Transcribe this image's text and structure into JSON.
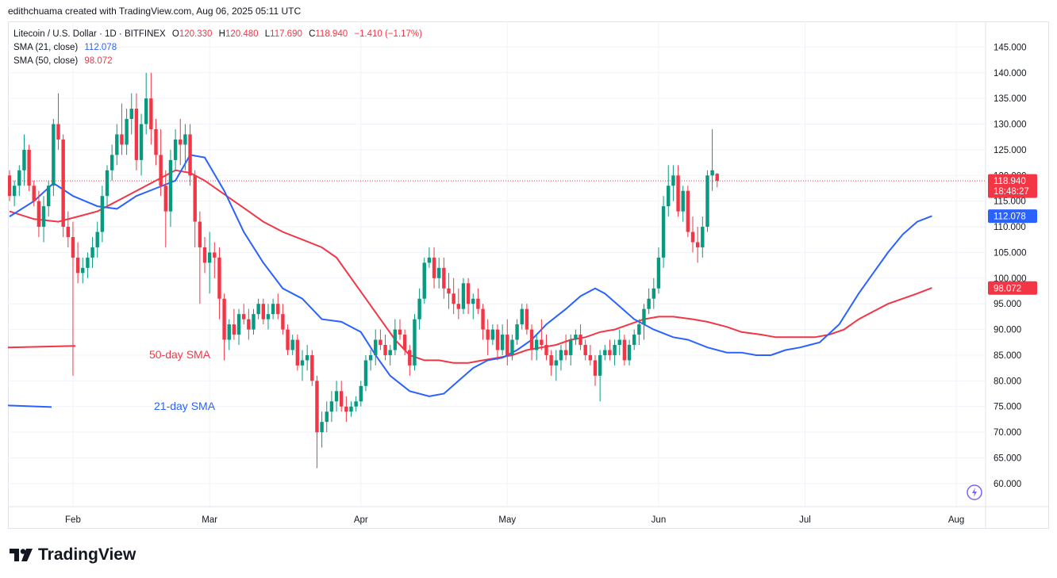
{
  "header": {
    "attribution": "edithchuama created with TradingView.com, Aug 06, 2025 05:11 UTC"
  },
  "legend": {
    "symbol": "Litecoin / U.S. Dollar · 1D · BITFINEX",
    "o_label": "O",
    "o_value": "120.330",
    "h_label": "H",
    "h_value": "120.480",
    "l_label": "L",
    "l_value": "117.690",
    "c_label": "C",
    "c_value": "118.940",
    "change": "−1.410 (−1.17%)",
    "sma21_label": "SMA (21, close)",
    "sma21_value": "112.078",
    "sma50_label": "SMA (50, close)",
    "sma50_value": "98.072"
  },
  "brand": {
    "name": "TradingView"
  },
  "colors": {
    "up": "#089981",
    "down": "#f23645",
    "sma21": "#2962ff",
    "sma50": "#f23645",
    "grid": "#f0f3fa",
    "text": "#131722"
  },
  "chart_data": {
    "type": "candlestick",
    "title": "Litecoin / U.S. Dollar · 1D · BITFINEX",
    "ylim": [
      55.5,
      150
    ],
    "y_ticks": [
      60,
      65,
      70,
      75,
      80,
      85,
      90,
      95,
      100,
      105,
      110,
      115,
      120,
      125,
      130,
      135,
      140,
      145
    ],
    "y_tick_labels": [
      "60.000",
      "65.000",
      "70.000",
      "75.000",
      "80.000",
      "85.000",
      "90.000",
      "95.000",
      "100.000",
      "105.000",
      "110.000",
      "115.000",
      "120.000",
      "125.000",
      "130.000",
      "135.000",
      "140.000",
      "145.000"
    ],
    "x_start": "2025-01-19",
    "x_ticks": [
      {
        "label": "Feb",
        "day": 13
      },
      {
        "label": "Mar",
        "day": 41
      },
      {
        "label": "Apr",
        "day": 72
      },
      {
        "label": "May",
        "day": 102
      },
      {
        "label": "Jun",
        "day": 133
      },
      {
        "label": "Jul",
        "day": 163
      },
      {
        "label": "Aug",
        "day": 194
      }
    ],
    "price_labels": [
      {
        "name": "last-price",
        "text": "118.940",
        "sub": "18:48:27",
        "value": 118.94,
        "color": "#f23645"
      },
      {
        "name": "sma21",
        "text": "112.078",
        "value": 112.078,
        "color": "#2962ff"
      },
      {
        "name": "sma50",
        "text": "98.072",
        "value": 98.072,
        "color": "#f23645"
      }
    ],
    "last_price": 118.94,
    "annotations": [
      {
        "text": "50-day SMA",
        "color": "#f23645"
      },
      {
        "text": "21-day SMA",
        "color": "#2962ff"
      }
    ],
    "candles": [
      [
        0,
        120,
        121,
        115,
        116
      ],
      [
        1,
        116,
        119,
        114,
        118
      ],
      [
        2,
        118,
        122,
        116,
        121
      ],
      [
        3,
        121,
        128,
        118,
        125
      ],
      [
        4,
        125,
        126,
        117,
        118
      ],
      [
        5,
        118,
        119,
        114,
        115
      ],
      [
        6,
        115,
        117,
        108,
        110
      ],
      [
        7,
        110,
        116,
        107,
        114
      ],
      [
        8,
        114,
        119,
        112,
        118
      ],
      [
        9,
        118,
        131,
        116,
        130
      ],
      [
        10,
        130,
        136,
        125,
        127
      ],
      [
        11,
        127,
        128,
        108,
        110
      ],
      [
        12,
        110,
        113,
        106,
        108
      ],
      [
        13,
        108,
        111,
        81,
        104
      ],
      [
        14,
        104,
        107,
        99,
        101
      ],
      [
        15,
        101,
        104,
        99,
        102
      ],
      [
        16,
        102,
        105,
        100,
        104
      ],
      [
        17,
        104,
        108,
        102,
        106
      ],
      [
        18,
        106,
        111,
        104,
        109
      ],
      [
        19,
        109,
        118,
        107,
        116
      ],
      [
        20,
        116,
        122,
        114,
        121
      ],
      [
        21,
        121,
        126,
        119,
        124
      ],
      [
        22,
        124,
        130,
        122,
        128
      ],
      [
        23,
        128,
        134,
        124,
        126
      ],
      [
        24,
        126,
        133,
        124,
        131
      ],
      [
        25,
        131,
        136,
        128,
        133
      ],
      [
        26,
        133,
        136,
        121,
        123
      ],
      [
        27,
        123,
        132,
        120,
        130
      ],
      [
        28,
        130,
        140,
        128,
        135
      ],
      [
        29,
        135,
        140,
        126,
        129
      ],
      [
        30,
        129,
        131,
        122,
        124
      ],
      [
        31,
        124,
        129,
        116,
        118
      ],
      [
        32,
        118,
        121,
        106,
        113
      ],
      [
        33,
        113,
        125,
        110,
        123
      ],
      [
        34,
        123,
        129,
        121,
        127
      ],
      [
        35,
        127,
        131,
        122,
        126
      ],
      [
        36,
        126,
        130,
        121,
        128
      ],
      [
        37,
        128,
        130,
        118,
        120
      ],
      [
        38,
        120,
        121,
        106,
        111
      ],
      [
        39,
        111,
        113,
        95,
        106
      ],
      [
        40,
        106,
        108,
        101,
        103
      ],
      [
        41,
        103,
        109,
        97,
        105
      ],
      [
        42,
        105,
        107,
        100,
        104
      ],
      [
        43,
        104,
        106,
        92,
        96
      ],
      [
        44,
        96,
        97,
        84,
        88
      ],
      [
        45,
        88,
        92,
        86,
        91
      ],
      [
        46,
        91,
        94,
        88,
        89
      ],
      [
        47,
        89,
        94,
        87,
        93
      ],
      [
        48,
        93,
        95,
        91,
        92
      ],
      [
        49,
        92,
        94,
        88,
        90
      ],
      [
        50,
        90,
        94,
        89,
        93
      ],
      [
        51,
        93,
        96,
        92,
        95
      ],
      [
        52,
        95,
        96,
        91,
        92
      ],
      [
        53,
        92,
        95,
        90,
        93
      ],
      [
        54,
        93,
        96,
        92,
        95
      ],
      [
        55,
        95,
        97,
        92,
        93
      ],
      [
        56,
        93,
        95,
        89,
        90
      ],
      [
        57,
        90,
        91,
        85,
        86
      ],
      [
        58,
        86,
        89,
        85,
        88
      ],
      [
        59,
        88,
        89,
        82,
        83
      ],
      [
        60,
        83,
        86,
        80,
        84
      ],
      [
        61,
        84,
        87,
        82,
        85
      ],
      [
        62,
        85,
        86,
        79,
        80
      ],
      [
        63,
        80,
        81,
        63,
        70
      ],
      [
        64,
        70,
        74,
        67,
        72
      ],
      [
        65,
        72,
        76,
        70,
        74
      ],
      [
        66,
        74,
        78,
        72,
        76
      ],
      [
        67,
        76,
        80,
        74,
        78
      ],
      [
        68,
        78,
        80,
        74,
        75
      ],
      [
        69,
        75,
        77,
        72,
        74
      ],
      [
        70,
        74,
        76,
        73,
        75
      ],
      [
        71,
        75,
        77,
        74,
        76
      ],
      [
        72,
        76,
        80,
        75,
        79
      ],
      [
        73,
        79,
        85,
        78,
        84
      ],
      [
        74,
        84,
        86,
        82,
        85
      ],
      [
        75,
        85,
        90,
        83,
        88
      ],
      [
        76,
        88,
        90,
        86,
        87
      ],
      [
        77,
        87,
        89,
        84,
        85
      ],
      [
        78,
        85,
        87,
        83,
        86
      ],
      [
        79,
        86,
        92,
        85,
        90
      ],
      [
        80,
        90,
        92,
        88,
        89
      ],
      [
        81,
        89,
        90,
        85,
        86
      ],
      [
        82,
        86,
        87,
        81,
        83
      ],
      [
        83,
        83,
        93,
        82,
        92
      ],
      [
        84,
        92,
        98,
        90,
        96
      ],
      [
        85,
        96,
        104,
        95,
        103
      ],
      [
        86,
        103,
        106,
        102,
        104
      ],
      [
        87,
        104,
        106,
        98,
        100
      ],
      [
        88,
        100,
        104,
        98,
        102
      ],
      [
        89,
        102,
        104,
        96,
        98
      ],
      [
        90,
        98,
        101,
        94,
        97
      ],
      [
        91,
        97,
        100,
        93,
        95
      ],
      [
        92,
        95,
        98,
        92,
        94
      ],
      [
        93,
        94,
        100,
        93,
        99
      ],
      [
        94,
        99,
        100,
        93,
        95
      ],
      [
        95,
        95,
        97,
        92,
        96
      ],
      [
        96,
        96,
        98,
        93,
        94
      ],
      [
        97,
        94,
        95,
        88,
        90
      ],
      [
        98,
        90,
        92,
        85,
        88
      ],
      [
        99,
        88,
        91,
        87,
        90
      ],
      [
        100,
        90,
        91,
        84,
        86
      ],
      [
        101,
        86,
        91,
        85,
        89
      ],
      [
        102,
        89,
        92,
        83,
        85
      ],
      [
        103,
        85,
        89,
        84,
        88
      ],
      [
        104,
        88,
        92,
        87,
        91
      ],
      [
        105,
        91,
        95,
        90,
        94
      ],
      [
        106,
        94,
        95,
        89,
        90
      ],
      [
        107,
        90,
        91,
        84,
        86
      ],
      [
        108,
        86,
        89,
        84,
        88
      ],
      [
        109,
        88,
        92,
        86,
        87
      ],
      [
        110,
        87,
        89,
        84,
        85
      ],
      [
        111,
        85,
        86,
        81,
        83
      ],
      [
        112,
        83,
        86,
        80,
        84
      ],
      [
        113,
        84,
        87,
        82,
        86
      ],
      [
        114,
        86,
        89,
        84,
        85
      ],
      [
        115,
        85,
        89,
        83,
        88
      ],
      [
        116,
        88,
        90,
        87,
        89
      ],
      [
        117,
        89,
        91,
        86,
        87
      ],
      [
        118,
        87,
        88,
        84,
        85
      ],
      [
        119,
        85,
        87,
        83,
        84
      ],
      [
        120,
        84,
        85,
        79,
        81
      ],
      [
        121,
        81,
        86,
        76,
        85
      ],
      [
        122,
        85,
        87,
        84,
        86
      ],
      [
        123,
        86,
        88,
        84,
        85
      ],
      [
        124,
        85,
        88,
        83,
        87
      ],
      [
        125,
        87,
        90,
        85,
        88
      ],
      [
        126,
        88,
        89,
        83,
        84
      ],
      [
        127,
        84,
        88,
        83,
        87
      ],
      [
        128,
        87,
        90,
        86,
        89
      ],
      [
        129,
        89,
        92,
        87,
        91
      ],
      [
        130,
        91,
        95,
        88,
        94
      ],
      [
        131,
        94,
        98,
        93,
        96
      ],
      [
        132,
        96,
        100,
        94,
        98
      ],
      [
        133,
        98,
        106,
        97,
        104
      ],
      [
        134,
        104,
        116,
        102,
        114
      ],
      [
        135,
        114,
        122,
        112,
        118
      ],
      [
        136,
        118,
        122,
        115,
        120
      ],
      [
        137,
        120,
        122,
        112,
        113
      ],
      [
        138,
        113,
        118,
        111,
        117
      ],
      [
        139,
        117,
        118,
        108,
        109
      ],
      [
        140,
        109,
        112,
        105,
        107
      ],
      [
        141,
        107,
        110,
        103,
        106
      ],
      [
        142,
        106,
        112,
        104,
        110
      ],
      [
        143,
        110,
        121,
        109,
        120
      ],
      [
        144,
        120,
        129,
        117,
        121
      ],
      [
        145,
        120.33,
        120.48,
        117.69,
        118.94
      ]
    ],
    "sma21": [
      [
        0,
        112
      ],
      [
        5,
        115
      ],
      [
        9,
        118.5
      ],
      [
        13,
        116
      ],
      [
        18,
        114
      ],
      [
        22,
        113.5
      ],
      [
        26,
        116
      ],
      [
        30,
        117.5
      ],
      [
        34,
        119
      ],
      [
        37,
        124
      ],
      [
        40,
        123.5
      ],
      [
        44,
        117
      ],
      [
        48,
        109
      ],
      [
        52,
        103
      ],
      [
        56,
        98
      ],
      [
        60,
        96
      ],
      [
        64,
        92
      ],
      [
        68,
        91.5
      ],
      [
        72,
        89.5
      ],
      [
        75,
        85
      ],
      [
        78,
        81
      ],
      [
        82,
        78
      ],
      [
        86,
        77
      ],
      [
        89,
        77.5
      ],
      [
        92,
        80
      ],
      [
        95,
        82.5
      ],
      [
        98,
        84
      ],
      [
        101,
        84.5
      ],
      [
        104,
        86
      ],
      [
        107,
        88
      ],
      [
        110,
        91
      ],
      [
        114,
        94
      ],
      [
        117,
        96.5
      ],
      [
        120,
        98
      ],
      [
        122,
        97
      ],
      [
        125,
        94.5
      ],
      [
        128,
        92
      ],
      [
        132,
        90
      ],
      [
        136,
        88.5
      ],
      [
        139,
        88
      ],
      [
        143,
        86.5
      ],
      [
        147,
        85.5
      ],
      [
        150,
        85.5
      ],
      [
        153,
        85
      ],
      [
        156,
        85
      ],
      [
        159,
        86
      ],
      [
        162,
        86.5
      ],
      [
        166,
        87.5
      ],
      [
        170,
        91
      ],
      [
        174,
        97
      ],
      [
        177,
        101
      ],
      [
        180,
        105
      ],
      [
        183,
        108.5
      ],
      [
        186,
        111
      ],
      [
        189,
        112.1
      ]
    ],
    "sma50": [
      [
        0,
        113
      ],
      [
        5,
        111.5
      ],
      [
        10,
        111
      ],
      [
        14,
        112
      ],
      [
        18,
        113
      ],
      [
        22,
        115
      ],
      [
        26,
        117
      ],
      [
        30,
        119
      ],
      [
        34,
        121
      ],
      [
        37,
        120.5
      ],
      [
        40,
        119
      ],
      [
        43,
        117
      ],
      [
        46,
        115
      ],
      [
        49,
        113
      ],
      [
        52,
        111
      ],
      [
        56,
        109
      ],
      [
        60,
        107.5
      ],
      [
        64,
        106
      ],
      [
        67,
        104
      ],
      [
        70,
        100
      ],
      [
        73,
        96
      ],
      [
        76,
        92
      ],
      [
        79,
        88
      ],
      [
        82,
        85
      ],
      [
        85,
        84
      ],
      [
        88,
        84
      ],
      [
        91,
        83.5
      ],
      [
        94,
        83.5
      ],
      [
        97,
        84
      ],
      [
        100,
        84.5
      ],
      [
        103,
        85
      ],
      [
        106,
        86
      ],
      [
        109,
        86.5
      ],
      [
        112,
        87
      ],
      [
        115,
        88
      ],
      [
        118,
        88.5
      ],
      [
        121,
        89.5
      ],
      [
        124,
        90
      ],
      [
        127,
        91
      ],
      [
        130,
        92
      ],
      [
        133,
        92.5
      ],
      [
        136,
        92.5
      ],
      [
        140,
        92
      ],
      [
        143,
        91.5
      ],
      [
        147,
        90.5
      ],
      [
        150,
        89.5
      ],
      [
        154,
        89
      ],
      [
        157,
        88.5
      ],
      [
        161,
        88.5
      ],
      [
        165,
        88.5
      ],
      [
        168,
        89
      ],
      [
        171,
        90
      ],
      [
        174,
        92
      ],
      [
        177,
        93.5
      ],
      [
        180,
        95
      ],
      [
        183,
        96
      ],
      [
        186,
        97
      ],
      [
        189,
        98.1
      ]
    ]
  }
}
